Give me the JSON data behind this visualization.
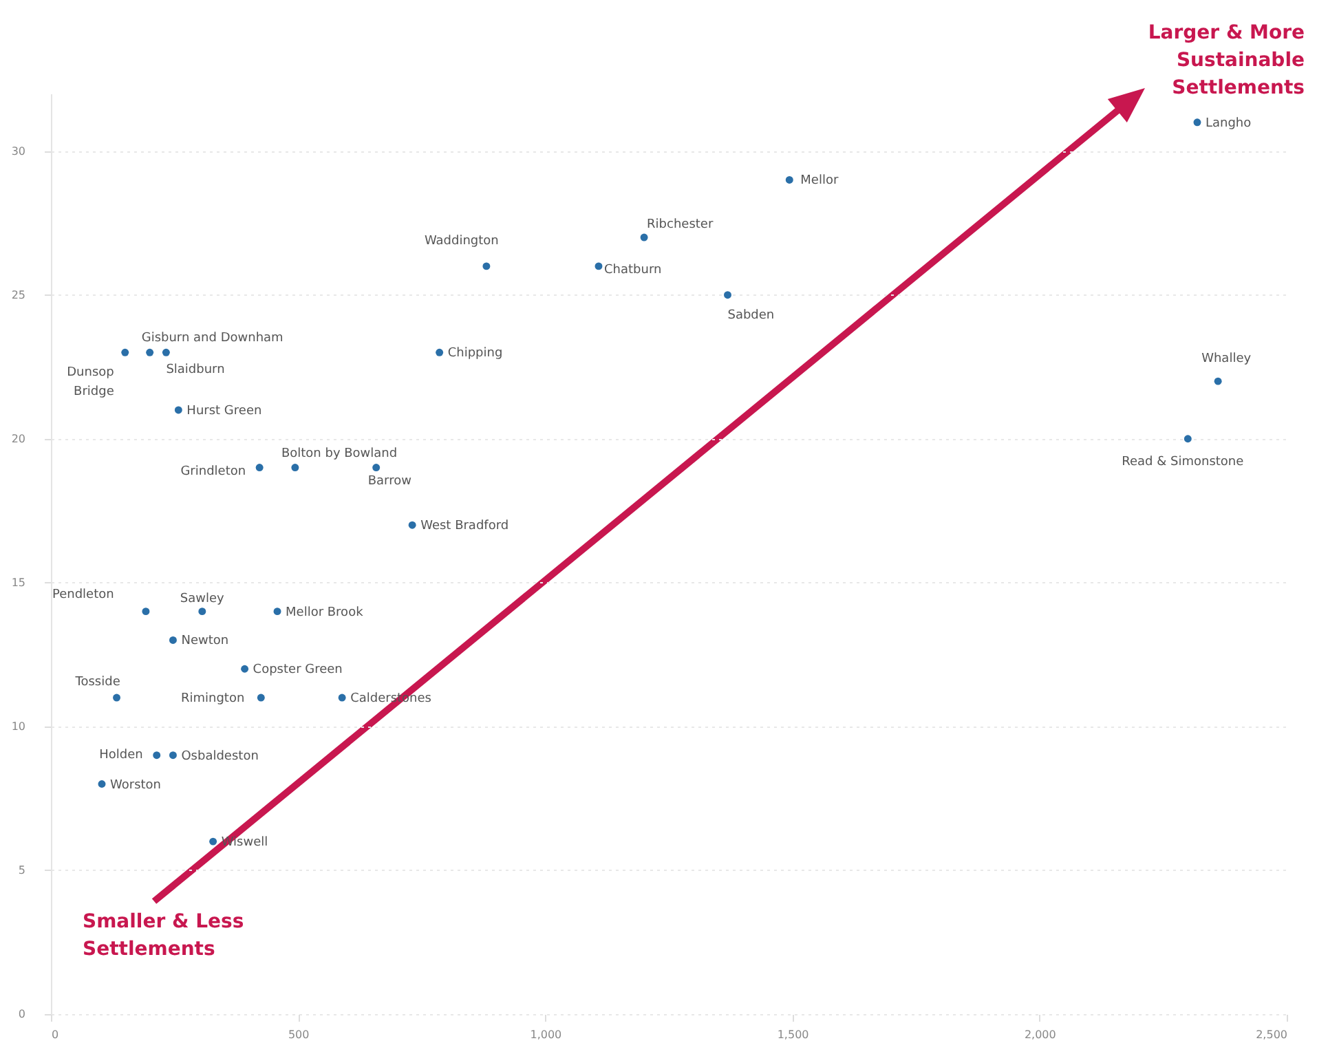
{
  "chart_data": {
    "type": "scatter",
    "x": [
      150,
      200,
      233,
      258,
      422,
      494,
      658,
      731,
      786,
      881,
      1108,
      1200,
      1369,
      1494,
      2319,
      2361,
      2300,
      192,
      306,
      458,
      247,
      392,
      133,
      425,
      589,
      214,
      247,
      103,
      328
    ],
    "series": [
      {
        "color": "#2a6fa8",
        "values": [
          23,
          23,
          23,
          21,
          19,
          19,
          19,
          17,
          23,
          26,
          26,
          27,
          25,
          29,
          31,
          22,
          20,
          14,
          14,
          14,
          13,
          12,
          11,
          11,
          11,
          9,
          9,
          8,
          6
        ]
      }
    ],
    "xlim": [
      0,
      2500
    ],
    "xticks": [
      0,
      500,
      {
        "value": 1000,
        "label": "1,000"
      },
      {
        "value": 1500,
        "label": "1,500"
      },
      {
        "value": 2000,
        "label": "2,000"
      },
      {
        "value": 2500,
        "label": "2,500"
      }
    ],
    "ylim": [
      0,
      32
    ],
    "yticks": [
      0,
      5,
      10,
      15,
      20,
      25,
      30
    ],
    "grid": "y",
    "marker": "circle",
    "annotations": [
      {
        "text": "Dunsop Bridge",
        "x": 150,
        "y": 23
      },
      {
        "text": "Gisburn and Downham",
        "x": 200,
        "y": 23
      },
      {
        "text": "Slaidburn",
        "x": 233,
        "y": 23
      },
      {
        "text": "Hurst Green",
        "x": 258,
        "y": 21
      },
      {
        "text": "Grindleton",
        "x": 422,
        "y": 19
      },
      {
        "text": "Bolton by Bowland",
        "x": 494,
        "y": 19
      },
      {
        "text": "Barrow",
        "x": 658,
        "y": 19
      },
      {
        "text": "West Bradford",
        "x": 731,
        "y": 17
      },
      {
        "text": "Chipping",
        "x": 786,
        "y": 23
      },
      {
        "text": "Waddington",
        "x": 881,
        "y": 26
      },
      {
        "text": "Chatburn",
        "x": 1108,
        "y": 26
      },
      {
        "text": "Ribchester",
        "x": 1200,
        "y": 27
      },
      {
        "text": "Sabden",
        "x": 1369,
        "y": 25
      },
      {
        "text": "Mellor",
        "x": 1494,
        "y": 29
      },
      {
        "text": "Langho",
        "x": 2319,
        "y": 31
      },
      {
        "text": "Whalley",
        "x": 2361,
        "y": 22
      },
      {
        "text": "Read & Simonstone",
        "x": 2300,
        "y": 20
      },
      {
        "text": "Pendleton",
        "x": 192,
        "y": 14
      },
      {
        "text": "Sawley",
        "x": 306,
        "y": 14
      },
      {
        "text": "Mellor Brook",
        "x": 458,
        "y": 14
      },
      {
        "text": "Newton",
        "x": 247,
        "y": 13
      },
      {
        "text": "Copster Green",
        "x": 392,
        "y": 12
      },
      {
        "text": "Tosside",
        "x": 133,
        "y": 11
      },
      {
        "text": "Rimington",
        "x": 425,
        "y": 11
      },
      {
        "text": "Calderstones",
        "x": 589,
        "y": 11
      },
      {
        "text": "Holden",
        "x": 214,
        "y": 9
      },
      {
        "text": "Osbaldeston",
        "x": 247,
        "y": 9
      },
      {
        "text": "Worston",
        "x": 103,
        "y": 8
      },
      {
        "text": "Wiswell",
        "x": 328,
        "y": 6
      },
      "Larger & More Sustainable Settlements",
      "Smaller & Less Settlements"
    ]
  }
}
